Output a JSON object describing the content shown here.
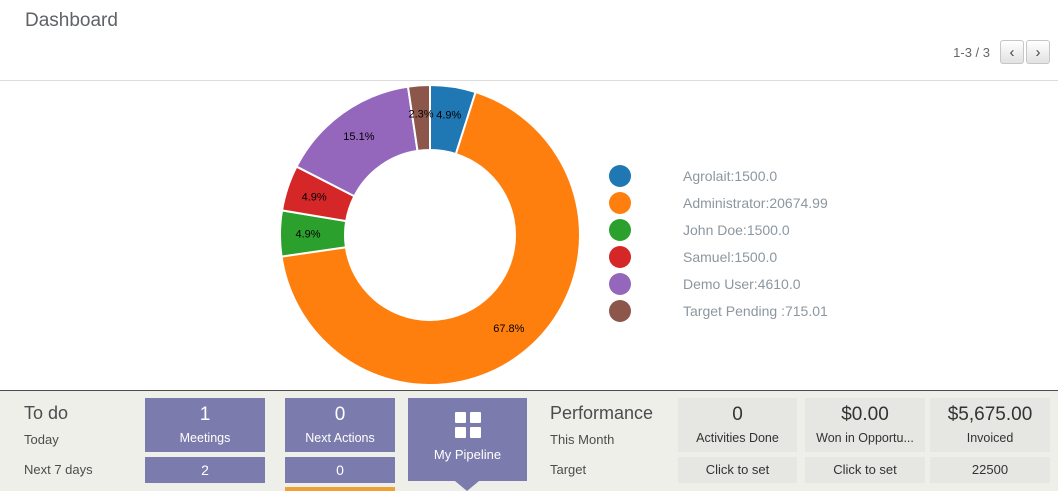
{
  "header": {
    "title": "Dashboard",
    "pager_text": "1-3 / 3",
    "prev_icon": "‹",
    "next_icon": "›"
  },
  "chart_data": {
    "type": "pie",
    "subtype": "donut",
    "legend_position": "right",
    "series": [
      {
        "label": "Agrolait",
        "value": 1500.0,
        "display": "Agrolait:1500.0",
        "pct_label": "4.9%",
        "color": "#1f77b4"
      },
      {
        "label": "Administrator",
        "value": 20674.99,
        "display": "Administrator:20674.99",
        "pct_label": "67.8%",
        "color": "#ff7f0e"
      },
      {
        "label": "John Doe",
        "value": 1500.0,
        "display": "John Doe:1500.0",
        "pct_label": "4.9%",
        "color": "#2ca02c"
      },
      {
        "label": "Samuel",
        "value": 1500.0,
        "display": "Samuel:1500.0",
        "pct_label": "4.9%",
        "color": "#d62728"
      },
      {
        "label": "Demo User",
        "value": 4610.0,
        "display": "Demo User:4610.0",
        "pct_label": "15.1%",
        "color": "#9467bd"
      },
      {
        "label": "Target Pending",
        "value": 715.01,
        "display": "Target Pending :715.01",
        "pct_label": "2.3%",
        "color": "#8c564b"
      }
    ]
  },
  "todo": {
    "title": "To do",
    "rows": [
      "Today",
      "Next 7 days"
    ],
    "tiles": [
      {
        "value": "1",
        "label": "Meetings",
        "second": "2"
      },
      {
        "value": "0",
        "label": "Next Actions",
        "second": "0"
      }
    ],
    "pipeline_button": "My Pipeline"
  },
  "performance": {
    "title": "Performance",
    "rows": [
      "This Month",
      "Target"
    ],
    "tiles": [
      {
        "value": "0",
        "label": "Activities Done",
        "target": "Click to set"
      },
      {
        "value": "$0.00",
        "label": "Won in Opportu...",
        "target": "Click to set"
      },
      {
        "value": "$5,675.00",
        "label": "Invoiced",
        "target": "22500"
      }
    ]
  },
  "colors": {
    "tile_purple": "#7c7bad",
    "tile_gray": "#e6e6e2",
    "accent_orange": "#eea236"
  }
}
